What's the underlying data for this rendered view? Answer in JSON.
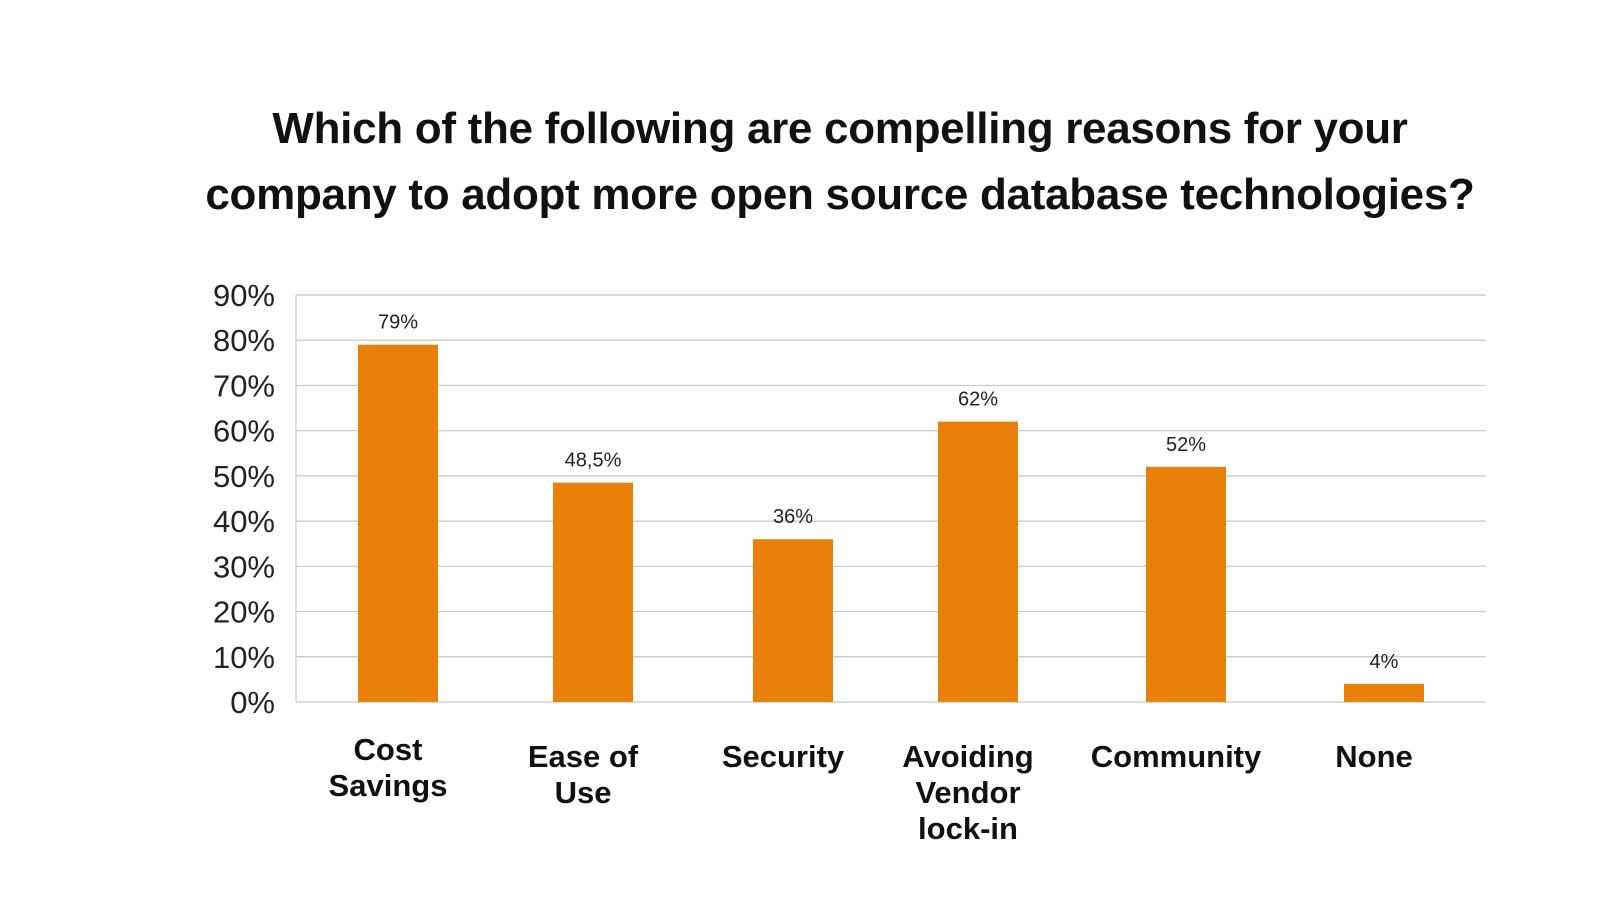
{
  "chart_data": {
    "type": "bar",
    "title_lines": [
      "Which of the following are compelling reasons for your",
      "company to adopt more open source database technologies?"
    ],
    "categories": [
      "Cost\nSavings",
      "Ease of\nUse",
      "Security",
      "Avoiding\nVendor\nlock-in",
      "Community",
      "None"
    ],
    "values": [
      79,
      48.5,
      36,
      62,
      52,
      4
    ],
    "data_labels": [
      "79%",
      "48,5%",
      "36%",
      "62%",
      "52%",
      "4%"
    ],
    "yticks": [
      "0%",
      "10%",
      "20%",
      "30%",
      "40%",
      "50%",
      "60%",
      "70%",
      "80%",
      "90%"
    ],
    "ylim": [
      0,
      90
    ],
    "xlabel": "",
    "ylabel": "",
    "grid": true,
    "legend": "none",
    "bar_color": "#E8800A",
    "grid_color": "#c8c8c8"
  }
}
